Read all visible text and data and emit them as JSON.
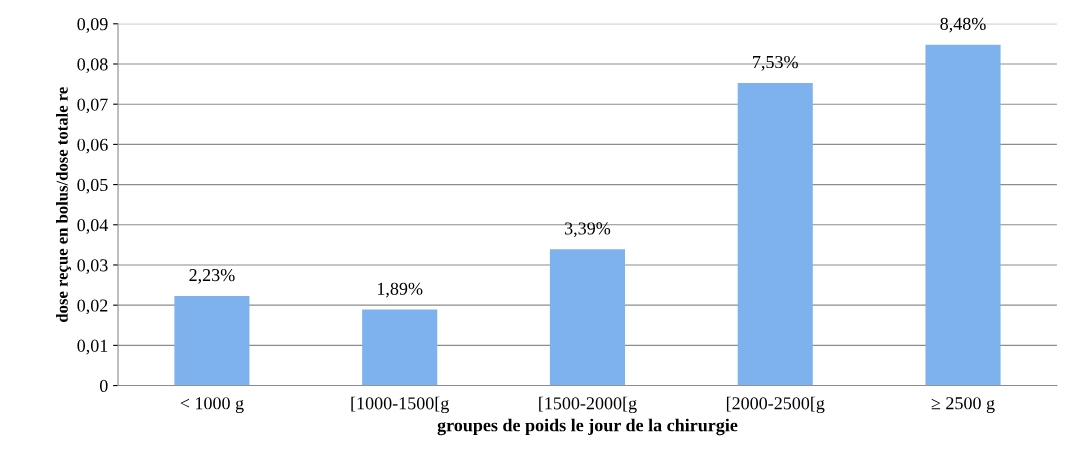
{
  "chart_data": {
    "type": "bar",
    "xlabel": "groupes de poids le jour de la chirurgie",
    "ylabel": "dose reçue en bolus/dose totale re",
    "categories": [
      "< 1000 g",
      "[1000-1500[g",
      "[1500-2000[g",
      "[2000-2500[g",
      "≥ 2500 g"
    ],
    "values": [
      0.0223,
      0.0189,
      0.0339,
      0.0753,
      0.0848
    ],
    "value_labels": [
      "2,23%",
      "1,89%",
      "3,39%",
      "7,53%",
      "8,48%"
    ],
    "color": "#7eb2ef",
    "ylim": [
      0,
      0.09
    ],
    "yticks": [
      0,
      {
        "value": 0.01,
        "label": "0,01"
      },
      {
        "value": 0.02,
        "label": "0,02"
      },
      {
        "value": 0.03,
        "label": "0,03"
      },
      {
        "value": 0.04,
        "label": "0,04"
      },
      {
        "value": 0.05,
        "label": "0,05"
      },
      {
        "value": 0.06,
        "label": "0,06"
      },
      {
        "value": 0.07,
        "label": "0,07"
      },
      {
        "value": 0.08,
        "label": "0,08"
      },
      {
        "value": 0.09,
        "label": "0,09"
      }
    ],
    "grid": "y"
  }
}
